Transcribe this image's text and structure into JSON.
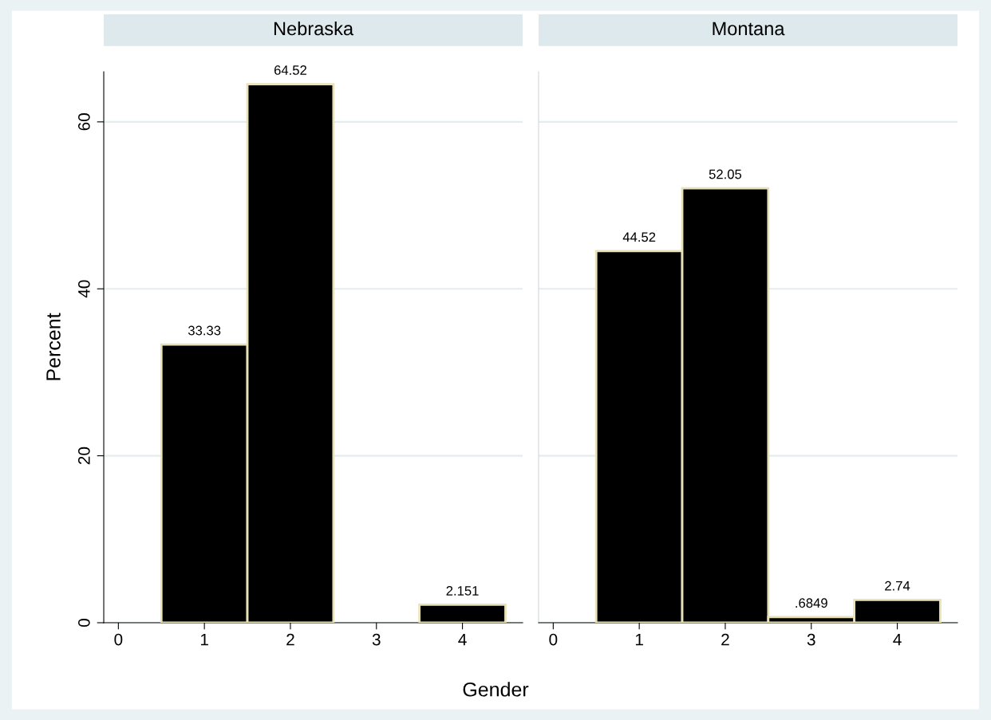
{
  "chart_data": [
    {
      "type": "histogram",
      "title": "Nebraska",
      "ylabel": "Percent",
      "xlabel": "Gender",
      "bins": [
        0.5,
        1.5,
        2.5,
        3.5,
        4.5
      ],
      "values": [
        33.33,
        64.52,
        null,
        2.151
      ],
      "value_labels": [
        "33.33",
        "64.52",
        null,
        "2.151"
      ],
      "color": "#000000",
      "xlim": [
        -0.17,
        4.7
      ],
      "xticks": [
        0,
        1,
        2,
        3,
        4
      ],
      "ylim": [
        0,
        66
      ],
      "yticks": [
        0,
        20,
        40,
        60
      ],
      "grid": "y"
    },
    {
      "type": "histogram",
      "title": "Montana",
      "bins": [
        0.5,
        1.5,
        2.5,
        3.5,
        4.5
      ],
      "values": [
        44.52,
        52.05,
        0.6849,
        2.74
      ],
      "value_labels": [
        "44.52",
        "52.05",
        ".6849",
        "2.74"
      ],
      "color": "#000000",
      "xlim": [
        -0.17,
        4.7
      ],
      "xticks": [
        0,
        1,
        2,
        3,
        4
      ],
      "ylim": [
        0,
        66
      ],
      "yticks": [
        0,
        20,
        40,
        60
      ],
      "grid": "y",
      "tick_labels": "x"
    }
  ]
}
